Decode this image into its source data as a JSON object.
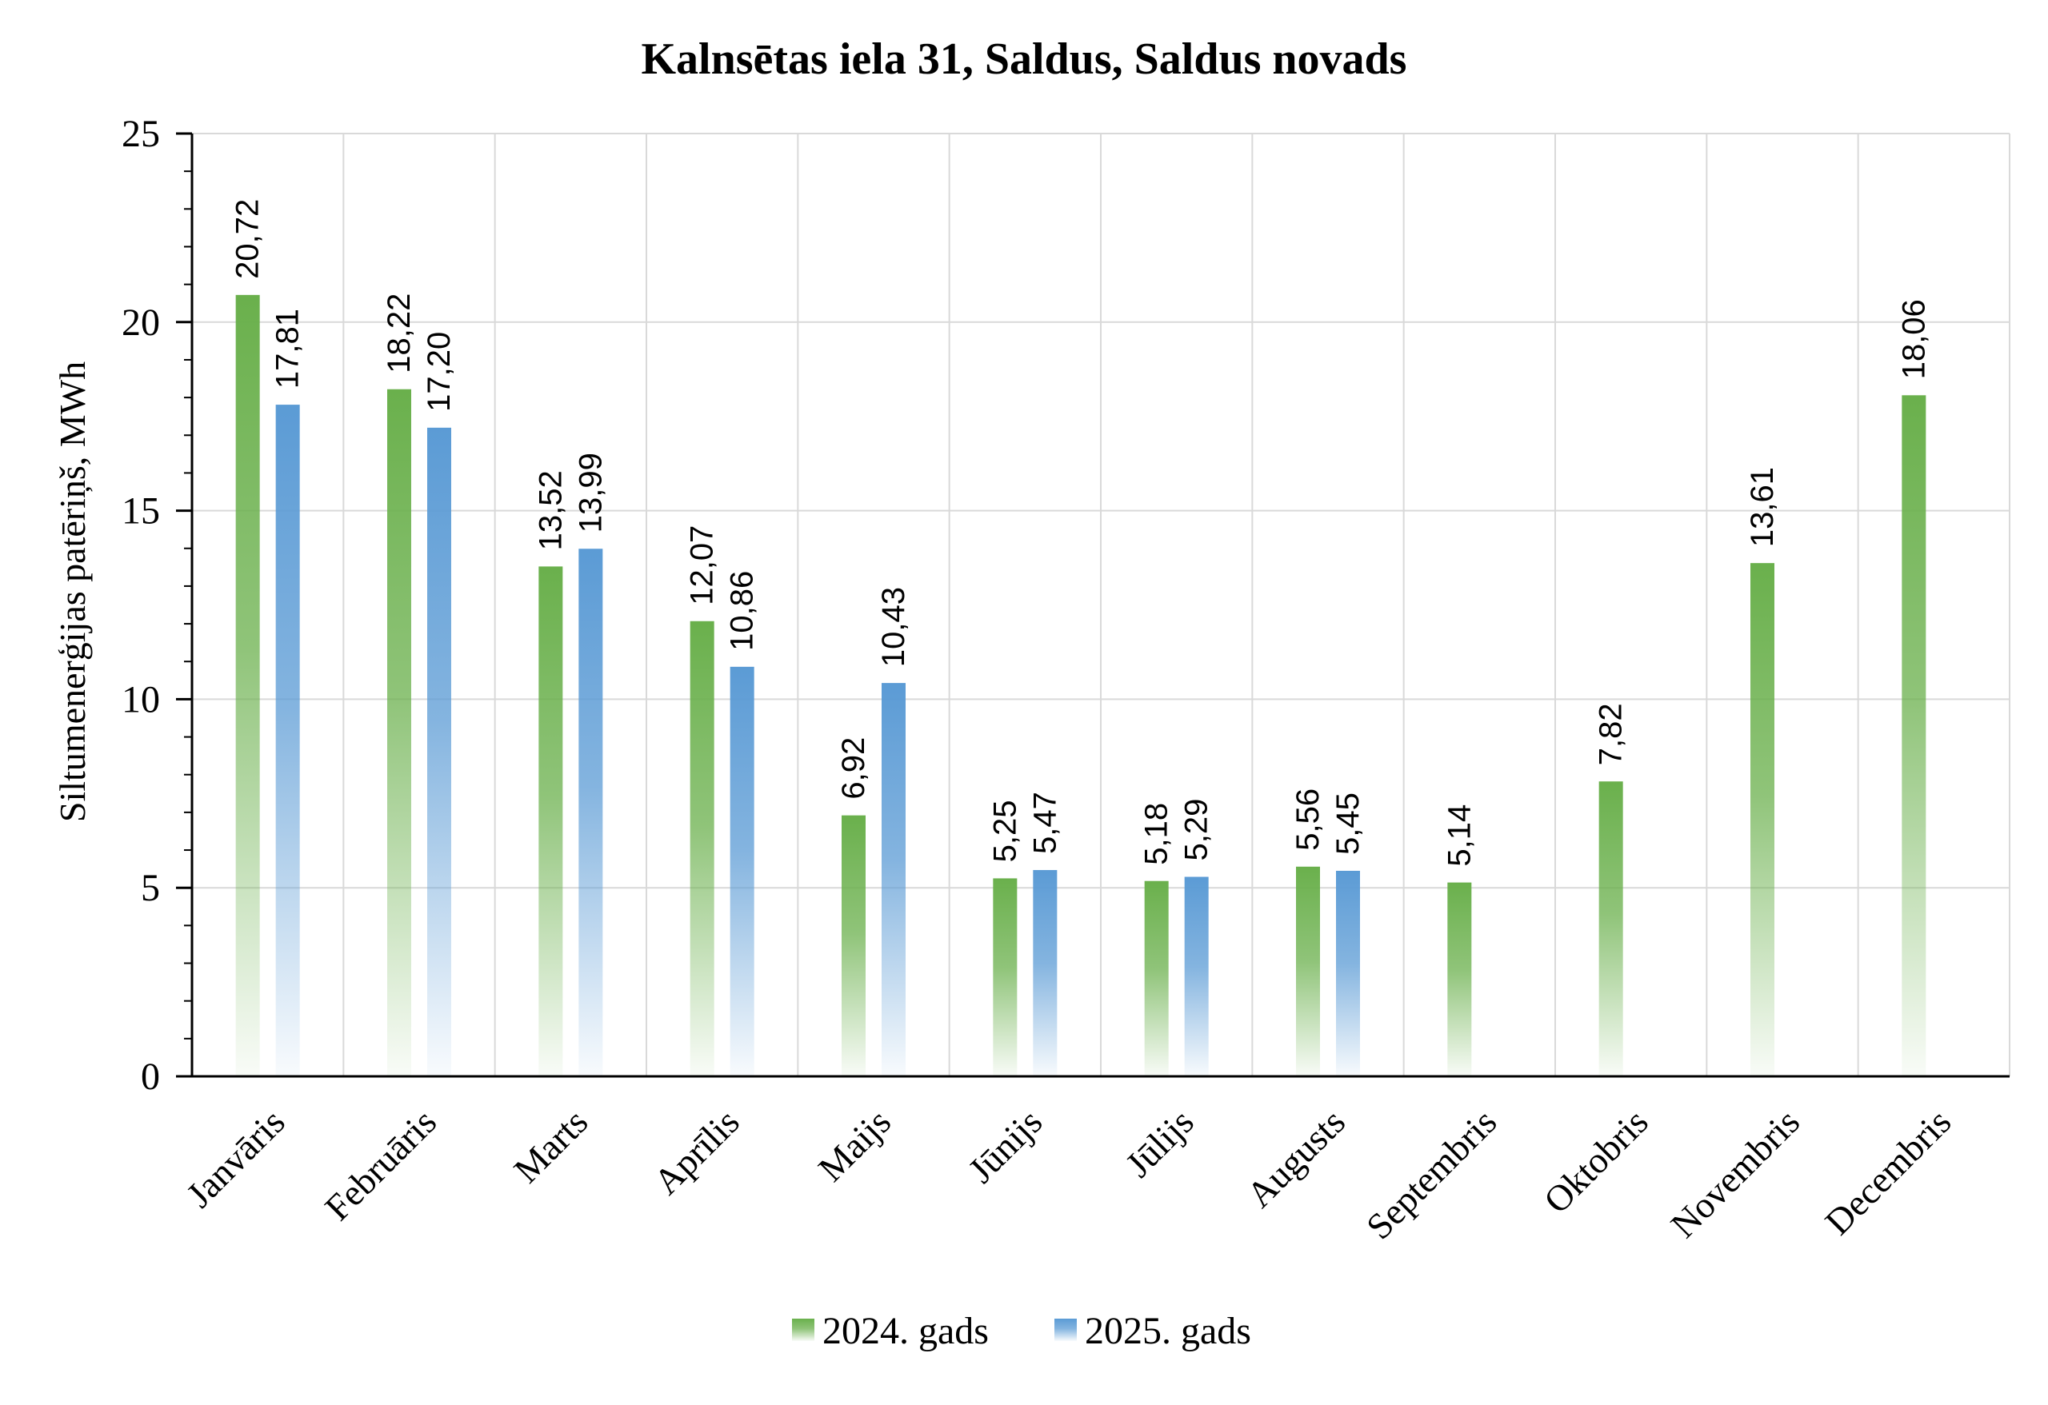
{
  "colors": {
    "series_2024": "#6ab04c",
    "series_2025": "#5b9bd5",
    "gridline": "#d9d9d9",
    "axis": "#000000"
  },
  "chart_data": {
    "type": "bar",
    "title": "Kalnsētas iela 31, Saldus, Saldus novads",
    "xlabel": "",
    "ylabel": "Siltumenerģijas patēriņš, MWh",
    "ylim": [
      0,
      25
    ],
    "yticks": [
      0,
      5,
      10,
      15,
      20,
      25
    ],
    "grid": true,
    "legend_position": "bottom",
    "categories": [
      "Janvāris",
      "Februāris",
      "Marts",
      "Aprīlis",
      "Maijs",
      "Jūnijs",
      "Jūlijs",
      "Augusts",
      "Septembris",
      "Oktobris",
      "Novembris",
      "Decembris"
    ],
    "series": [
      {
        "name": "2024. gads",
        "color": "#6ab04c",
        "values": [
          20.72,
          18.22,
          13.52,
          12.07,
          6.92,
          5.25,
          5.18,
          5.56,
          5.14,
          7.82,
          13.61,
          18.06
        ],
        "labels": [
          "20,72",
          "18,22",
          "13,52",
          "12,07",
          "6,92",
          "5,25",
          "5,18",
          "5,56",
          "5,14",
          "7,82",
          "13,61",
          "18,06"
        ]
      },
      {
        "name": "2025. gads",
        "color": "#5b9bd5",
        "values": [
          17.81,
          17.2,
          13.99,
          10.86,
          10.43,
          5.47,
          5.29,
          5.45,
          null,
          null,
          null,
          null
        ],
        "labels": [
          "17,81",
          "17,20",
          "13,99",
          "10,86",
          "10,43",
          "5,47",
          "5,29",
          "5,45",
          "",
          "",
          "",
          ""
        ]
      }
    ]
  }
}
